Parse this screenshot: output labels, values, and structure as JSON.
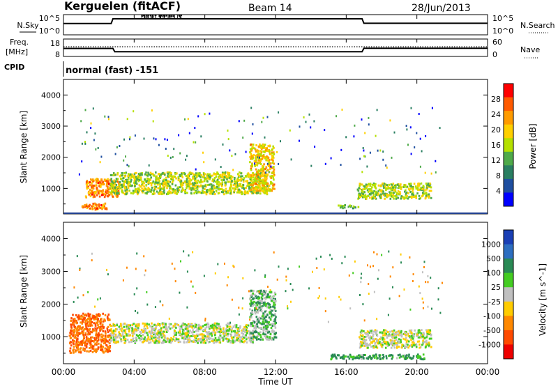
{
  "header": {
    "station": "Kerguelen (fitACF)",
    "beam": "Beam 14",
    "date": "28/Jun/2013"
  },
  "panels": {
    "nsky": {
      "label": "N.Sky",
      "right_label": "N.Search",
      "ticks_left": [
        "10^5",
        "10^0"
      ],
      "ticks_right": [
        "10^5",
        "10^0"
      ]
    },
    "freq": {
      "label_line1": "Freq.",
      "label_line2": "[MHz]",
      "right_label": "Nave",
      "ticks_left": [
        "18",
        "8"
      ],
      "ticks_right": [
        "60",
        "0"
      ]
    },
    "cpid": {
      "label": "CPID",
      "value": "normal (fast) -151"
    },
    "power": {
      "ylabel": "Slant Range [km]",
      "yticks": [
        "4000",
        "3000",
        "2000",
        "1000"
      ],
      "colorbar_label": "Power [dB]",
      "colorbar_ticks": [
        "28",
        "24",
        "20",
        "16",
        "12",
        "8",
        "4"
      ],
      "colorbar_colors": [
        "#ff0000",
        "#ff5a00",
        "#ff9b00",
        "#ffd000",
        "#b5e000",
        "#4faa4a",
        "#2a7f62",
        "#1f4fa0",
        "#0000ff"
      ]
    },
    "velocity": {
      "ylabel": "Slant Range [km]",
      "yticks": [
        "4000",
        "3000",
        "2000",
        "1000"
      ],
      "colorbar_label": "Velocity [m s^-1]",
      "colorbar_ticks": [
        "1000",
        "500",
        "100",
        "25",
        "-25",
        "-100",
        "-500",
        "-1000"
      ],
      "colorbar_colors": [
        "#1a3fb5",
        "#2d6ec0",
        "#2a8a55",
        "#44cc22",
        "#c0c0c0",
        "#ffcc00",
        "#ff8800",
        "#ff4a00",
        "#ee0000"
      ]
    }
  },
  "xaxis": {
    "label": "Time UT",
    "ticks": [
      "00:00",
      "04:00",
      "08:00",
      "12:00",
      "16:00",
      "20:00",
      "00:00"
    ]
  },
  "chart_data": [
    {
      "type": "line",
      "title": "N.Sky / N.Search",
      "x": [
        0,
        2.7,
        2.8,
        16.9,
        17.0,
        24
      ],
      "series": [
        {
          "name": "N.Sky",
          "values": [
            2500,
            2500,
            100000,
            100000,
            3000,
            3000
          ]
        }
      ]
    },
    {
      "type": "line",
      "title": "Freq. / Nave",
      "x": [
        0,
        2.8,
        2.9,
        16.9,
        17.0,
        24
      ],
      "series": [
        {
          "name": "Freq.",
          "values": [
            12.5,
            12.5,
            10.3,
            10.3,
            12.6,
            12.6
          ]
        },
        {
          "name": "Nave",
          "values": [
            34,
            34,
            34,
            34,
            34,
            34
          ]
        }
      ],
      "ylim": [
        8,
        18
      ]
    },
    {
      "type": "heatmap",
      "title": "Power [dB]",
      "xlim": [
        0,
        24
      ],
      "ylim": [
        180,
        4500
      ],
      "patches": [
        {
          "t": [
            1.2,
            3.1
          ],
          "r": [
            700,
            1300
          ],
          "power_db": 24
        },
        {
          "t": [
            1.0,
            2.6
          ],
          "r": [
            300,
            500
          ],
          "power_db": 24
        },
        {
          "t": [
            2.6,
            11.5
          ],
          "r": [
            800,
            1500
          ],
          "power_db": 16
        },
        {
          "t": [
            10.5,
            11.9
          ],
          "r": [
            900,
            2400
          ],
          "power_db": 20
        },
        {
          "t": [
            15.5,
            16.7
          ],
          "r": [
            350,
            450
          ],
          "power_db": 12
        },
        {
          "t": [
            16.6,
            20.8
          ],
          "r": [
            650,
            1150
          ],
          "power_db": 16
        }
      ]
    },
    {
      "type": "heatmap",
      "title": "Velocity [m s^-1]",
      "xlim": [
        0,
        24
      ],
      "ylim": [
        180,
        4500
      ],
      "patches": [
        {
          "t": [
            0.3,
            2.6
          ],
          "r": [
            500,
            1700
          ],
          "velocity": -300
        },
        {
          "t": [
            2.6,
            10.7
          ],
          "r": [
            800,
            1400
          ],
          "velocity": 0
        },
        {
          "t": [
            10.5,
            12.0
          ],
          "r": [
            900,
            2400
          ],
          "velocity": 50
        },
        {
          "t": [
            16.7,
            20.8
          ],
          "r": [
            650,
            1200
          ],
          "velocity": 0
        },
        {
          "t": [
            15.0,
            20.5
          ],
          "r": [
            300,
            450
          ],
          "velocity": 80
        }
      ]
    }
  ]
}
